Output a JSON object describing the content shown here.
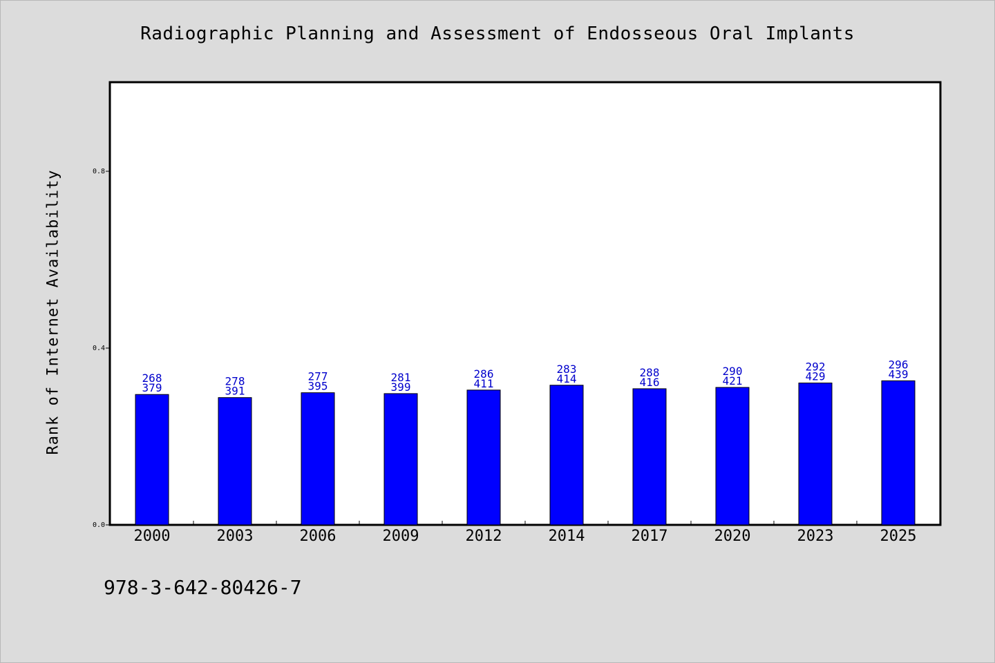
{
  "chart_data": {
    "type": "bar",
    "title": "Radiographic Planning and Assessment of Endosseous Oral Implants",
    "xlabel": "",
    "ylabel": "Rank of Internet Availability",
    "categories": [
      "2000",
      "2003",
      "2006",
      "2009",
      "2012",
      "2014",
      "2017",
      "2020",
      "2023",
      "2025"
    ],
    "series": [
      {
        "values": [
          0.295,
          0.288,
          0.299,
          0.297,
          0.305,
          0.316,
          0.308,
          0.311,
          0.321,
          0.326
        ],
        "label_top": [
          "268",
          "278",
          "277",
          "281",
          "286",
          "283",
          "288",
          "290",
          "292",
          "296"
        ],
        "label_bottom": [
          "379",
          "391",
          "395",
          "399",
          "411",
          "414",
          "416",
          "421",
          "429",
          "439"
        ]
      }
    ],
    "ylim": [
      0,
      1.0
    ],
    "yticks": [
      0.0,
      0.4,
      0.8
    ],
    "ytick_labels": [
      "0.0",
      "0.4",
      "0.8"
    ],
    "grid": false,
    "legend": "none",
    "bar_color": "#0000ff",
    "label_color": "#0000cc"
  },
  "footer": {
    "code": "978-3-642-80426-7"
  }
}
